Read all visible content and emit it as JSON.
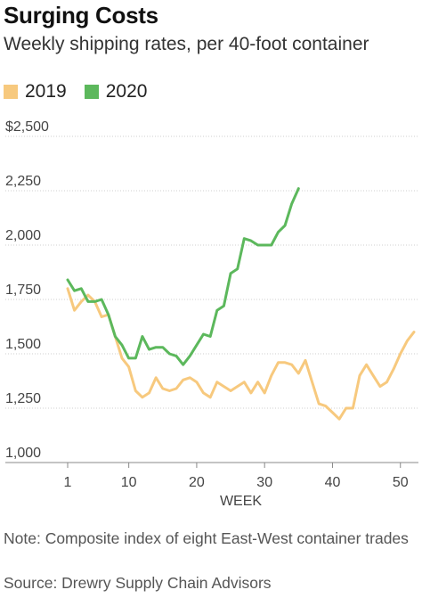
{
  "title": "Surging Costs",
  "subtitle": "Weekly shipping rates, per 40-foot container",
  "note": "Note: Composite index of eight East-West container trades",
  "source": "Source: Drewry Supply Chain Advisors",
  "chart_data": {
    "type": "line",
    "xlabel": "WEEK",
    "ylabel": "",
    "xlim": [
      1,
      52
    ],
    "ylim": [
      1000,
      2500
    ],
    "grid": true,
    "legend_position": "top-left",
    "x_ticks": [
      1,
      10,
      20,
      30,
      40,
      50
    ],
    "x_tick_labels": [
      "1",
      "10",
      "20",
      "30",
      "40",
      "50"
    ],
    "y_ticks": [
      1000,
      1250,
      1500,
      1750,
      2000,
      2250,
      2500
    ],
    "y_tick_labels": [
      "1,000",
      "1,250",
      "1,500",
      "1,750",
      "2,000",
      "2,250",
      "$2,500"
    ],
    "series": [
      {
        "name": "2019",
        "color": "#f7c97e",
        "x": [
          1,
          2,
          3,
          4,
          5,
          6,
          7,
          8,
          9,
          10,
          11,
          12,
          13,
          14,
          15,
          16,
          17,
          18,
          19,
          20,
          21,
          22,
          23,
          24,
          25,
          26,
          27,
          28,
          29,
          30,
          31,
          32,
          33,
          34,
          35,
          36,
          37,
          38,
          39,
          40,
          41,
          42,
          43,
          44,
          45,
          46,
          47,
          48,
          49,
          50,
          51,
          52
        ],
        "values": [
          1800,
          1700,
          1740,
          1770,
          1740,
          1670,
          1680,
          1580,
          1480,
          1440,
          1330,
          1300,
          1320,
          1390,
          1340,
          1330,
          1340,
          1380,
          1390,
          1370,
          1320,
          1300,
          1370,
          1350,
          1330,
          1350,
          1370,
          1320,
          1370,
          1320,
          1400,
          1460,
          1460,
          1450,
          1410,
          1470,
          1370,
          1270,
          1260,
          1230,
          1200,
          1250,
          1250,
          1400,
          1450,
          1400,
          1350,
          1370,
          1430,
          1500,
          1560,
          1600
        ]
      },
      {
        "name": "2020",
        "color": "#5cb85c",
        "x": [
          1,
          2,
          3,
          4,
          5,
          6,
          7,
          8,
          9,
          10,
          11,
          12,
          13,
          14,
          15,
          16,
          17,
          18,
          19,
          20,
          21,
          22,
          23,
          24,
          25,
          26,
          27,
          28,
          29,
          30,
          31,
          32,
          33,
          34,
          35
        ],
        "values": [
          1840,
          1790,
          1800,
          1740,
          1740,
          1750,
          1680,
          1580,
          1540,
          1480,
          1480,
          1580,
          1520,
          1530,
          1530,
          1500,
          1490,
          1450,
          1490,
          1540,
          1590,
          1580,
          1700,
          1720,
          1870,
          1890,
          2030,
          2020,
          2000,
          2000,
          2000,
          2060,
          2090,
          2190,
          2260
        ]
      }
    ]
  }
}
